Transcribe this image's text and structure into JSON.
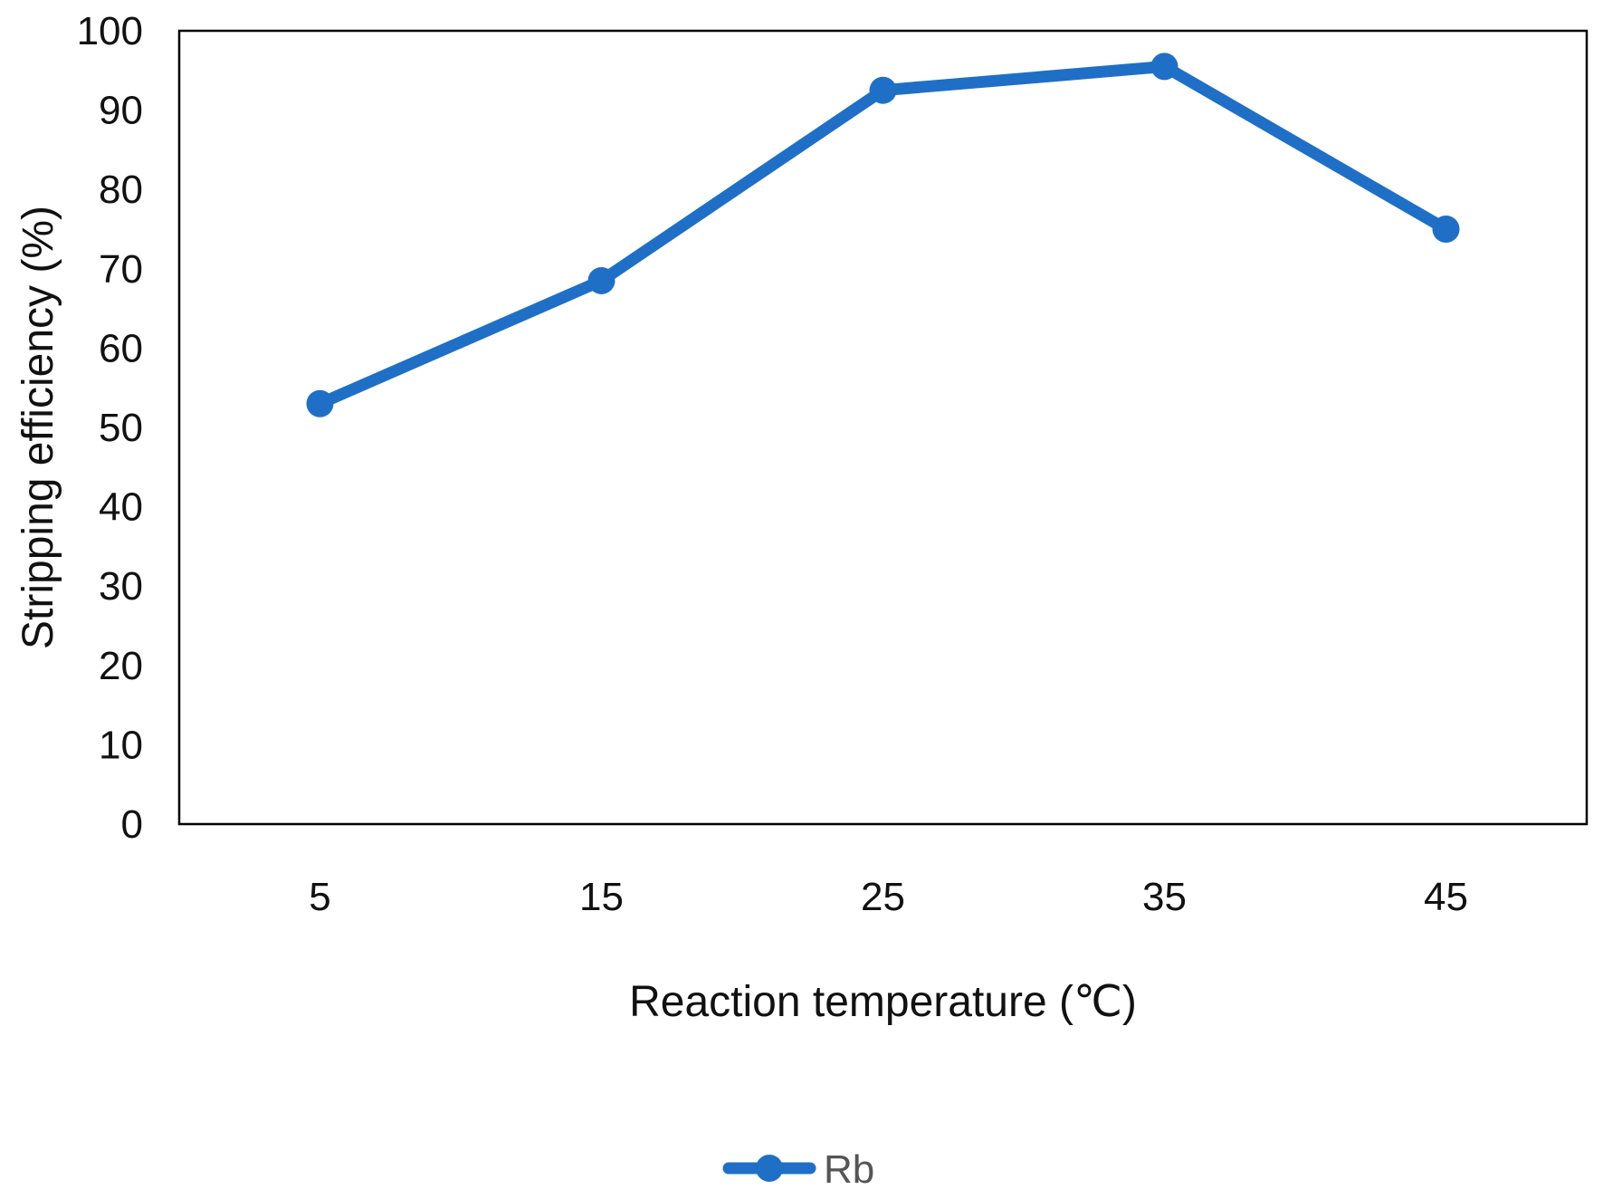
{
  "chart_data": {
    "type": "line",
    "title": "",
    "xlabel": "Reaction temperature (℃)",
    "ylabel": "Stripping efficiency (%)",
    "categories": [
      "5",
      "15",
      "25",
      "35",
      "45"
    ],
    "x": [
      5,
      15,
      25,
      35,
      45
    ],
    "yticks": [
      "0",
      "10",
      "20",
      "30",
      "40",
      "50",
      "60",
      "70",
      "80",
      "90",
      "100"
    ],
    "ylim": [
      0,
      100
    ],
    "grid": false,
    "legend_position": "bottom",
    "series": [
      {
        "name": "Rb",
        "color": "#1f6fc6",
        "values": [
          53,
          68.5,
          92.5,
          95.5,
          75
        ]
      }
    ]
  }
}
